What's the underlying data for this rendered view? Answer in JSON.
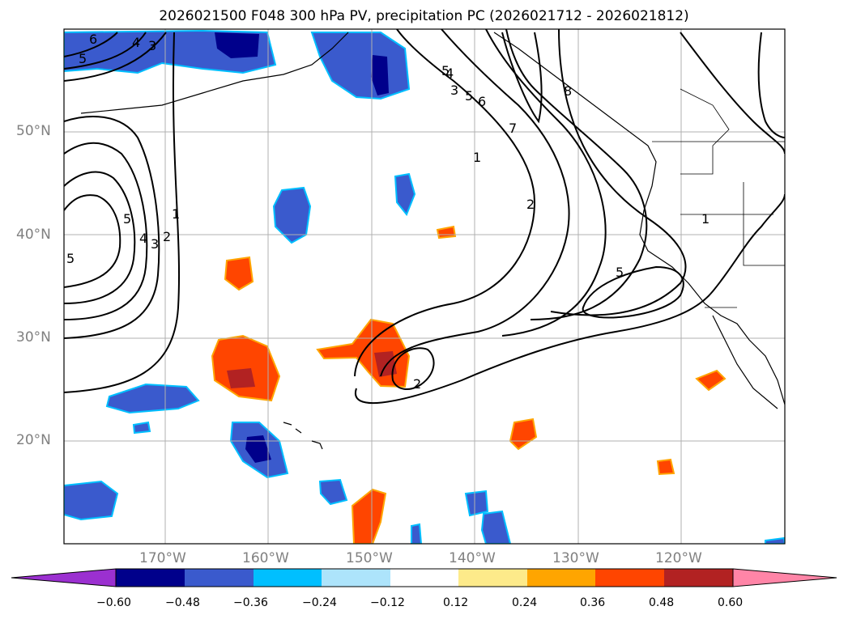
{
  "title": "2026021500 F048 300 hPa PV, precipitation PC (2026021712 - 2026021812)",
  "map": {
    "lon_range": [
      -180,
      -110
    ],
    "lat_range": [
      10,
      60
    ],
    "lat_labels": [
      "50°N",
      "40°N",
      "30°N",
      "20°N"
    ],
    "lon_labels": [
      "170°W",
      "160°W",
      "150°W",
      "140°W",
      "130°W",
      "120°W"
    ],
    "contour_labels": [
      "5",
      "4",
      "3",
      "6",
      "5",
      "1",
      "2",
      "3",
      "4",
      "5",
      "5",
      "4",
      "3",
      "5",
      "6",
      "7",
      "1",
      "2",
      "5",
      "1",
      "2",
      "8"
    ]
  },
  "colorbar": {
    "ticks": [
      "−0.60",
      "−0.48",
      "−0.36",
      "−0.24",
      "−0.12",
      "0.12",
      "0.24",
      "0.36",
      "0.48",
      "0.60"
    ],
    "colors": [
      "#9b30d0",
      "#00008b",
      "#3a5acd",
      "#00bfff",
      "#ade4fb",
      "#ffffff",
      "#fdea8a",
      "#ffa500",
      "#ff4500",
      "#b22222",
      "#ff85a7"
    ]
  }
}
